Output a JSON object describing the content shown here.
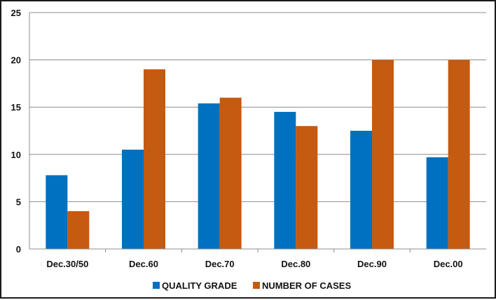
{
  "chart_data": {
    "type": "bar",
    "categories": [
      "Dec.30/50",
      "Dec.60",
      "Dec.70",
      "Dec.80",
      "Dec.90",
      "Dec.00"
    ],
    "series": [
      {
        "name": "QUALITY GRADE",
        "color": "#0070C0",
        "values": [
          7.8,
          10.5,
          15.4,
          14.5,
          12.5,
          9.7
        ]
      },
      {
        "name": "NUMBER OF CASES",
        "color": "#C55A11",
        "values": [
          4,
          19,
          16,
          13,
          20,
          20
        ]
      }
    ],
    "ylim": [
      0,
      25
    ],
    "yticks": [
      0,
      5,
      10,
      15,
      20,
      25
    ],
    "grid": true,
    "legend": "bottom"
  }
}
